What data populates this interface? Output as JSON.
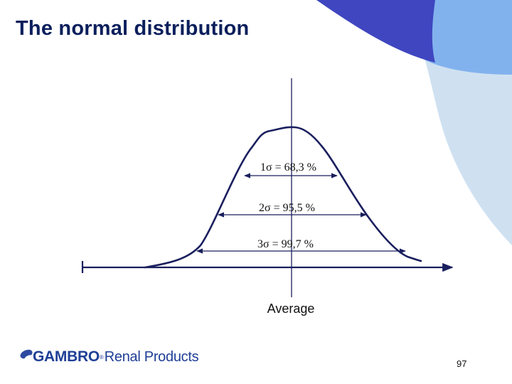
{
  "slide": {
    "title": "The normal distribution",
    "page_number": "97"
  },
  "diagram": {
    "intervals": [
      {
        "k": "1",
        "symbol": "σ",
        "text": " = 68,3 %"
      },
      {
        "k": "2",
        "symbol": "σ",
        "text": " = 95,5 %"
      },
      {
        "k": "3",
        "symbol": "σ",
        "text": " = 99,7 %"
      }
    ],
    "center_label": "Average"
  },
  "logo": {
    "brand": "GAMBRO",
    "registered": "®",
    "subtitle": "Renal Products"
  },
  "colors": {
    "title": "#0b1f5c",
    "curve": "#1a1f5e",
    "decor_dark": "#3f46c0",
    "decor_mid": "#82b2ee",
    "decor_light": "#cfe1f1",
    "logo": "#1f3f96"
  }
}
